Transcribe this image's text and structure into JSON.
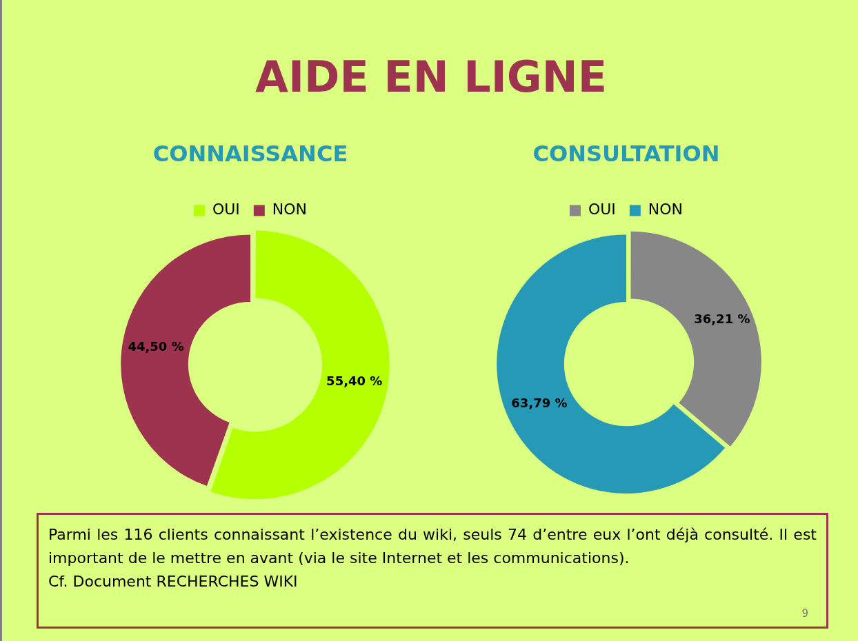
{
  "chart_data": [
    {
      "type": "other",
      "title": "AIDE EN LIGNE"
    },
    {
      "type": "donut",
      "title": "CONNAISSANCE",
      "categories": [
        "OUI",
        "NON"
      ],
      "values": [
        55.4,
        44.5
      ],
      "colors": [
        "#b4ff00",
        "#9e3350"
      ],
      "value_labels": [
        "55,40 %",
        "44,50 %"
      ],
      "legend": "top"
    },
    {
      "type": "donut",
      "title": "CONSULTATION",
      "categories": [
        "OUI",
        "NON"
      ],
      "values": [
        36.21,
        63.79
      ],
      "colors": [
        "#878787",
        "#2599b5"
      ],
      "value_labels": [
        "36,21 %",
        "63,79 %"
      ],
      "legend": "top"
    },
    {
      "type": "other",
      "annotations": [
        "Parmi les 116 clients connaissant l’existence du wiki, seuls 74 d’entre eux l’ont déjà consulté. Il est important de le mettre en avant (via le site Internet et les communications).",
        "Cf. Document RECHERCHES WIKI",
        "9"
      ]
    }
  ]
}
